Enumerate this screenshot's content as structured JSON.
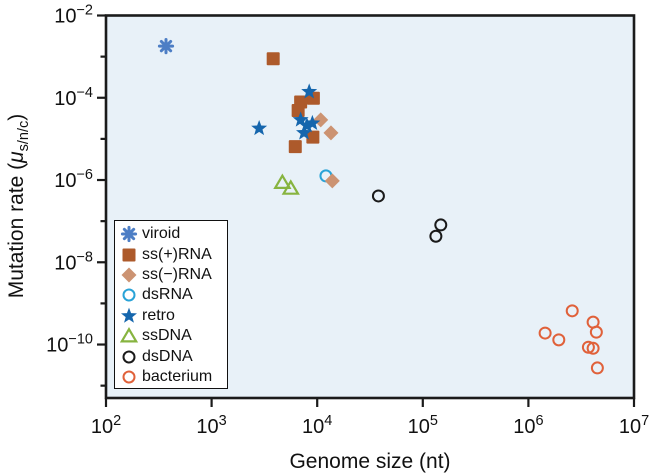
{
  "figure": {
    "background": "#ffffff",
    "frame_color": "#1b1b1b",
    "plot_background": "#e8f1f8"
  },
  "chart_data": {
    "type": "scatter",
    "title": "",
    "xlabel": "Genome size (nt)",
    "ylabel": {
      "prefix": "Mutation rate (",
      "mu": "μ",
      "subscript": "s/n/c",
      "suffix": ")"
    },
    "x_scale": "log",
    "y_scale": "log",
    "xlim": [
      100,
      10000000
    ],
    "ylim_log10": [
      -11.3,
      -2
    ],
    "x_tick_base": "10",
    "x_tick_exponents": [
      2,
      3,
      4,
      5,
      6,
      7
    ],
    "y_major_tick_exponents": [
      -2,
      -4,
      -6,
      -8,
      -10
    ],
    "y_minor_tick_exponents": [
      -3,
      -5,
      -7,
      -9,
      -11
    ],
    "grid": "off",
    "legend_position": "lower-left",
    "series": [
      {
        "name": "viroid",
        "marker": "asterisk",
        "fill_style": "filled",
        "color": "#4d7ec5",
        "z": 4,
        "points": [
          [
            370,
            0.0018
          ]
        ]
      },
      {
        "name": "ss(+)RNA",
        "marker": "square",
        "fill_style": "filled",
        "color": "#ad5a2b",
        "z": 1,
        "points": [
          [
            3830,
            0.00089
          ],
          [
            9200,
            9.7e-05
          ],
          [
            6970,
            7.9e-05
          ],
          [
            6600,
            4.9e-05
          ],
          [
            9100,
            1.1e-05
          ],
          [
            6200,
            6.5e-06
          ]
        ]
      },
      {
        "name": "ss(−)RNA",
        "marker": "diamond",
        "fill_style": "filled",
        "color": "#cc9372",
        "z": 3,
        "points": [
          [
            10800,
            2.9e-05
          ],
          [
            13500,
            1.4e-05
          ],
          [
            13900,
            9.5e-07
          ]
        ]
      },
      {
        "name": "dsRNA",
        "marker": "circle",
        "fill_style": "open",
        "color": "#29a3d7",
        "z": 2,
        "points": [
          [
            12100,
            1.26e-06
          ]
        ]
      },
      {
        "name": "retro",
        "marker": "star",
        "fill_style": "filled",
        "color": "#1566ad",
        "z": 8,
        "points": [
          [
            8400,
            0.00014
          ],
          [
            6970,
            2.9e-05
          ],
          [
            9000,
            2.4e-05
          ],
          [
            8000,
            2.1e-05
          ],
          [
            7500,
            1.4e-05
          ],
          [
            2820,
            1.8e-05
          ]
        ]
      },
      {
        "name": "ssDNA",
        "marker": "triangle",
        "fill_style": "open",
        "color": "#87b440",
        "z": 5,
        "points": [
          [
            4680,
            8.7e-07
          ],
          [
            5620,
            6.3e-07
          ]
        ]
      },
      {
        "name": "dsDNA",
        "marker": "circle",
        "fill_style": "open",
        "color": "#1a1a1a",
        "z": 6,
        "points": [
          [
            38000,
            4.1e-07
          ],
          [
            148000,
            8.1e-08
          ],
          [
            133000,
            4.3e-08
          ]
        ]
      },
      {
        "name": "bacterium",
        "marker": "circle",
        "fill_style": "open",
        "color": "#e0613a",
        "z": 7,
        "points": [
          [
            2600000,
            6.6e-10
          ],
          [
            4100000,
            3.5e-10
          ],
          [
            4400000,
            2e-10
          ],
          [
            1440000,
            1.9e-10
          ],
          [
            1940000,
            1.3e-10
          ],
          [
            3700000,
            8.6e-11
          ],
          [
            4100000,
            8.1e-11
          ],
          [
            4500000,
            2.7e-11
          ]
        ]
      }
    ]
  }
}
